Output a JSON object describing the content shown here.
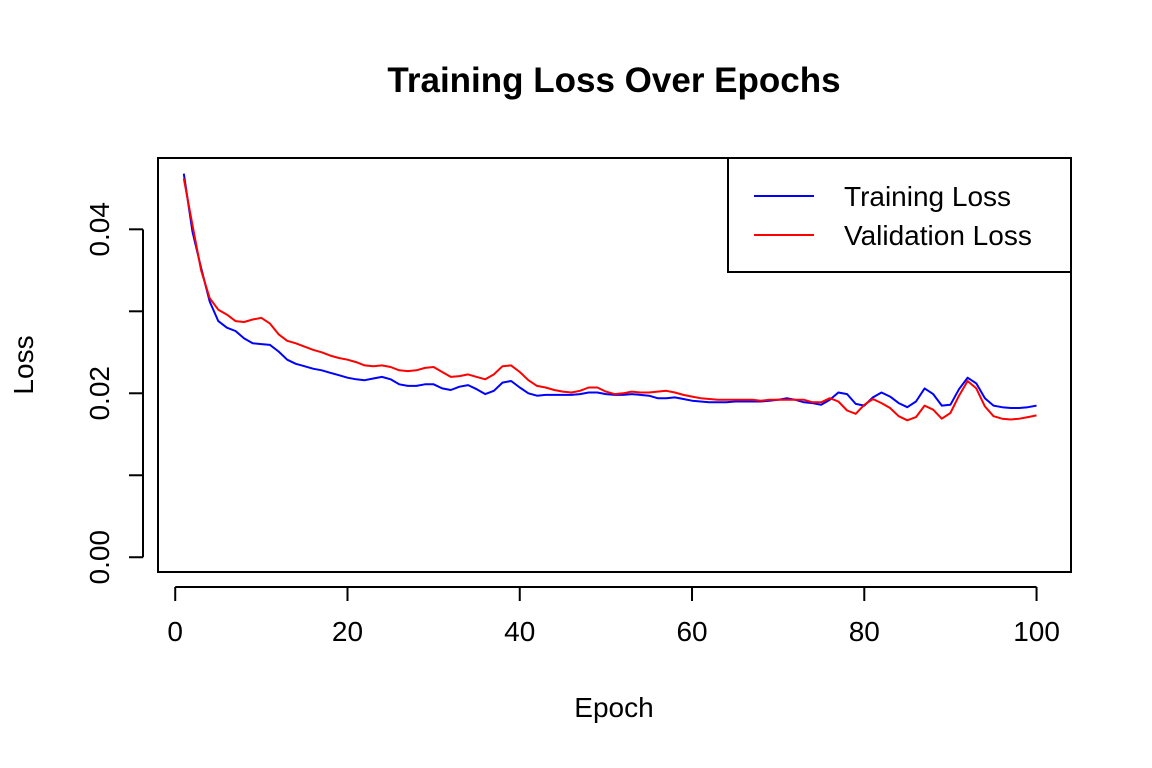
{
  "chart_data": {
    "type": "line",
    "title": "Training Loss Over Epochs",
    "xlabel": "Epoch",
    "ylabel": "Loss",
    "xlim": [
      -2,
      104
    ],
    "ylim": [
      -0.0018,
      0.0487
    ],
    "x_ticks": [
      0,
      20,
      40,
      60,
      80,
      100
    ],
    "x_tick_labels": [
      "0",
      "20",
      "40",
      "60",
      "80",
      "100"
    ],
    "y_ticks": [
      0.0,
      0.01,
      0.02,
      0.03,
      0.04
    ],
    "y_tick_labels": [
      "0.00",
      "",
      "0.02",
      "",
      "0.04"
    ],
    "legend_position": "top-right",
    "grid": false,
    "x": [
      1,
      2,
      3,
      4,
      5,
      6,
      7,
      8,
      9,
      10,
      11,
      12,
      13,
      14,
      15,
      16,
      17,
      18,
      19,
      20,
      21,
      22,
      23,
      24,
      25,
      26,
      27,
      28,
      29,
      30,
      31,
      32,
      33,
      34,
      35,
      36,
      37,
      38,
      39,
      40,
      41,
      42,
      43,
      44,
      45,
      46,
      47,
      48,
      49,
      50,
      51,
      52,
      53,
      54,
      55,
      56,
      57,
      58,
      59,
      60,
      61,
      62,
      63,
      64,
      65,
      66,
      67,
      68,
      69,
      70,
      71,
      72,
      73,
      74,
      75,
      76,
      77,
      78,
      79,
      80,
      81,
      82,
      83,
      84,
      85,
      86,
      87,
      88,
      89,
      90,
      91,
      92,
      93,
      94,
      95,
      96,
      97,
      98,
      99,
      100
    ],
    "series": [
      {
        "name": "Training Loss",
        "color": "#0000ff",
        "values": [
          0.0468,
          0.0397,
          0.0353,
          0.0312,
          0.0288,
          0.028,
          0.0276,
          0.0267,
          0.0261,
          0.026,
          0.0259,
          0.0251,
          0.0241,
          0.0236,
          0.0233,
          0.023,
          0.0228,
          0.0225,
          0.0222,
          0.0219,
          0.0217,
          0.0216,
          0.0218,
          0.022,
          0.0217,
          0.0211,
          0.0209,
          0.0209,
          0.0211,
          0.0211,
          0.0206,
          0.0204,
          0.0208,
          0.021,
          0.0205,
          0.0199,
          0.0203,
          0.0213,
          0.0215,
          0.0207,
          0.02,
          0.0197,
          0.0198,
          0.0198,
          0.0198,
          0.0198,
          0.0199,
          0.0201,
          0.0201,
          0.0199,
          0.0198,
          0.0198,
          0.0199,
          0.0198,
          0.0197,
          0.0194,
          0.0194,
          0.0195,
          0.0193,
          0.0191,
          0.019,
          0.0189,
          0.0189,
          0.0189,
          0.019,
          0.019,
          0.019,
          0.019,
          0.0191,
          0.0192,
          0.0194,
          0.0192,
          0.0189,
          0.0188,
          0.0186,
          0.0192,
          0.0201,
          0.0199,
          0.0187,
          0.0185,
          0.0195,
          0.0201,
          0.0196,
          0.0188,
          0.0183,
          0.019,
          0.0206,
          0.0199,
          0.0185,
          0.0186,
          0.0205,
          0.0219,
          0.0212,
          0.0194,
          0.0185,
          0.0183,
          0.0182,
          0.0182,
          0.0183,
          0.0185
        ]
      },
      {
        "name": "Validation Loss",
        "color": "#ff0000",
        "values": [
          0.0462,
          0.0405,
          0.035,
          0.0316,
          0.0302,
          0.0296,
          0.0288,
          0.0287,
          0.029,
          0.0292,
          0.0285,
          0.0272,
          0.0264,
          0.0261,
          0.0257,
          0.0253,
          0.025,
          0.0246,
          0.0243,
          0.0241,
          0.0238,
          0.0234,
          0.0233,
          0.0234,
          0.0232,
          0.0228,
          0.0227,
          0.0228,
          0.0231,
          0.0232,
          0.0226,
          0.022,
          0.0221,
          0.0223,
          0.022,
          0.0217,
          0.0223,
          0.0233,
          0.0234,
          0.0226,
          0.0216,
          0.0209,
          0.0207,
          0.0204,
          0.0202,
          0.0201,
          0.0203,
          0.0207,
          0.0207,
          0.0202,
          0.0199,
          0.02,
          0.0202,
          0.0201,
          0.0201,
          0.0202,
          0.0203,
          0.0201,
          0.0198,
          0.0196,
          0.0194,
          0.0193,
          0.0192,
          0.0192,
          0.0192,
          0.0192,
          0.0192,
          0.0191,
          0.0192,
          0.0192,
          0.0192,
          0.0192,
          0.0192,
          0.0189,
          0.0189,
          0.0194,
          0.019,
          0.0179,
          0.0175,
          0.0186,
          0.0193,
          0.0188,
          0.0182,
          0.0172,
          0.0167,
          0.0171,
          0.0185,
          0.018,
          0.0169,
          0.0176,
          0.0197,
          0.0215,
          0.0206,
          0.0184,
          0.0172,
          0.0169,
          0.0168,
          0.0169,
          0.0171,
          0.0173
        ]
      }
    ]
  }
}
